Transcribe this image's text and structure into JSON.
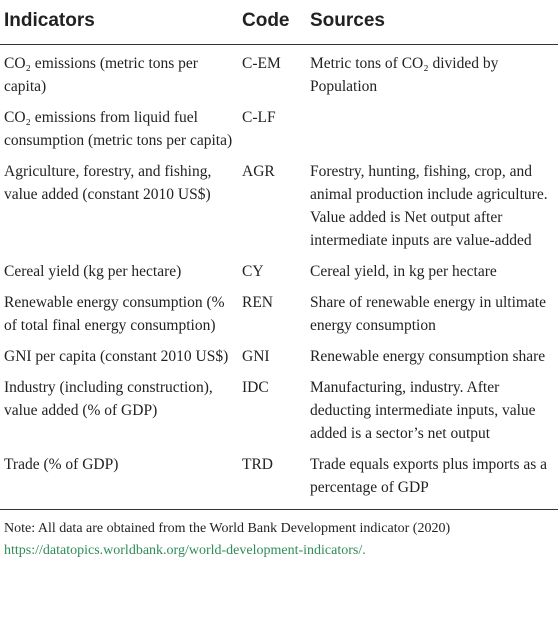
{
  "table": {
    "header": [
      "Indicators",
      "Code",
      "Sources"
    ],
    "rows": [
      {
        "indicator": "CO₂ emissions (metric tons per capita)",
        "code": "C-EM",
        "source": "Metric tons of CO₂ divided by Population"
      },
      {
        "indicator": "CO₂ emissions from liquid fuel consumption (metric tons per capita)",
        "code": "C-LF"
      },
      {
        "indicator": "Agriculture, forestry, and fishing, value added (constant 2010 US$)",
        "code": "AGR",
        "source": "Forestry, hunting, fishing, crop, and animal production include agriculture. Value added is Net output after intermediate inputs are value-added"
      },
      {
        "indicator": "Cereal yield (kg per hectare)",
        "code": "CY",
        "source": "Cereal yield, in kg per hectare"
      },
      {
        "indicator": "Renewable energy consumption (% of total final energy consumption)",
        "code": "REN",
        "source": "Share of renewable energy in ultimate energy consumption"
      },
      {
        "indicator": "GNI per capita (constant 2010 US$)",
        "code": "GNI",
        "source": "Renewable energy consumption share"
      },
      {
        "indicator": "Industry (including construction), value added (% of GDP)",
        "code": "IDC",
        "source": "Manufacturing, industry. After deducting intermediate inputs, value added is a sector’s net output"
      },
      {
        "indicator": "Trade (% of GDP)",
        "code": "TRD",
        "source": "Trade equals exports plus imports as a percentage of GDP"
      }
    ]
  },
  "note": {
    "text": "Note: All data are obtained from the World Bank Development indicator (2020) ",
    "link": "https://datatopics.worldbank.org/world-development-indicators/."
  }
}
